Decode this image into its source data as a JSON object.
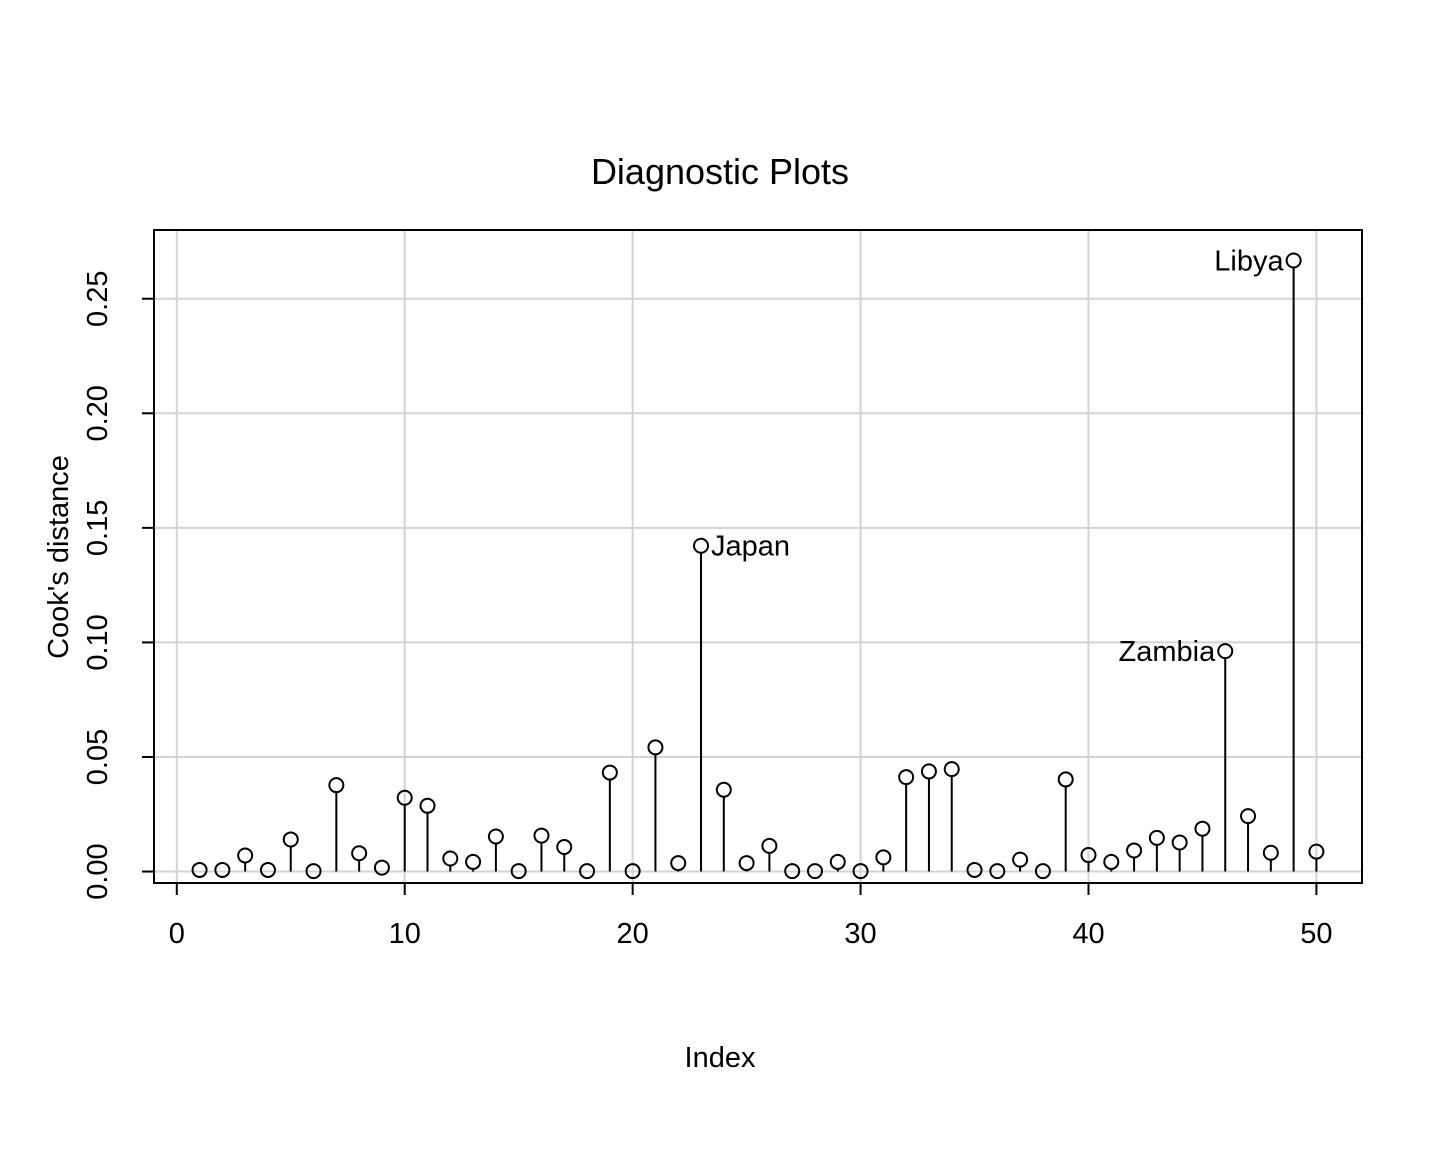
{
  "chart_data": {
    "type": "scatter",
    "style": "stem",
    "title": "Diagnostic Plots",
    "xlabel": "Index",
    "ylabel": "Cook's distance",
    "xlim": [
      -1,
      52
    ],
    "ylim": [
      -0.005,
      0.28
    ],
    "x_ticks": [
      0,
      10,
      20,
      30,
      40,
      50
    ],
    "y_ticks": [
      0.0,
      0.05,
      0.1,
      0.15,
      0.2,
      0.25
    ],
    "x_tick_labels": [
      "0",
      "10",
      "20",
      "30",
      "40",
      "50"
    ],
    "y_tick_labels": [
      "0.00",
      "0.05",
      "0.10",
      "0.15",
      "0.20",
      "0.25"
    ],
    "grid": true,
    "grid_color": "#d3d3d3",
    "point_color": "#000000",
    "series": [
      {
        "x": [
          1,
          2,
          3,
          4,
          5,
          6,
          7,
          8,
          9,
          10,
          11,
          12,
          13,
          14,
          15,
          16,
          17,
          18,
          19,
          20,
          21,
          22,
          23,
          24,
          25,
          26,
          27,
          28,
          29,
          30,
          31,
          32,
          33,
          34,
          35,
          36,
          37,
          38,
          39,
          40,
          41,
          42,
          43,
          44,
          45,
          46,
          47,
          48,
          49,
          50
        ],
        "values": [
          0.0007,
          0.0007,
          0.007,
          0.0007,
          0.014,
          0.0002,
          0.0377,
          0.008,
          0.0017,
          0.0322,
          0.0287,
          0.0057,
          0.0042,
          0.0153,
          0.0002,
          0.0157,
          0.0107,
          0.0002,
          0.0432,
          0.0002,
          0.0542,
          0.0037,
          0.1422,
          0.0357,
          0.0037,
          0.0112,
          0.0002,
          0.0002,
          0.0042,
          0.0002,
          0.0062,
          0.0412,
          0.0437,
          0.0447,
          0.0007,
          0.0002,
          0.0052,
          0.0002,
          0.0402,
          0.0072,
          0.0042,
          0.0092,
          0.0147,
          0.0127,
          0.0187,
          0.0962,
          0.0242,
          0.0082,
          0.2667,
          0.0087
        ]
      }
    ],
    "annotations": [
      {
        "text": "Japan",
        "x": 23,
        "side": "right"
      },
      {
        "text": "Zambia",
        "x": 46,
        "side": "left"
      },
      {
        "text": "Libya",
        "x": 49,
        "side": "left"
      }
    ]
  }
}
